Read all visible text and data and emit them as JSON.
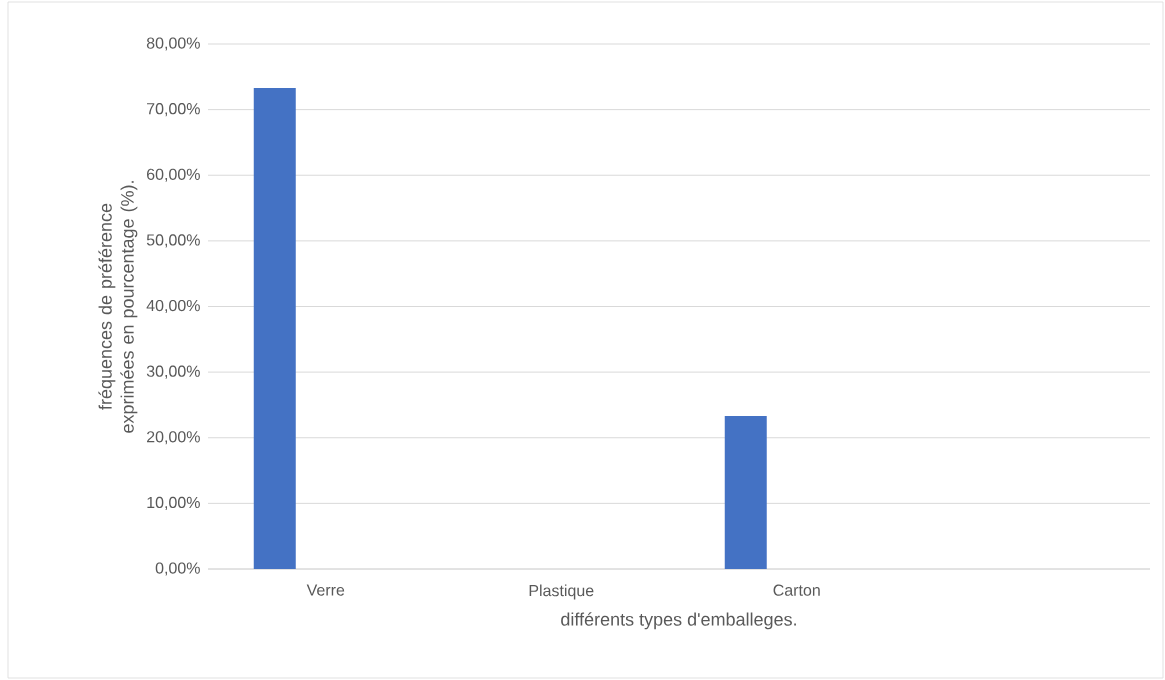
{
  "chart_data": {
    "type": "bar",
    "xlabel": "différents types d'emballeges.",
    "ylabel": "fréquences de préférence exprimées en pourcentage (%).",
    "categories": [
      "Verre",
      "Plastique",
      "Carton",
      null
    ],
    "values": [
      73.3,
      null,
      23.3,
      null
    ],
    "color": "#4472c4",
    "ylim": [
      0,
      80
    ],
    "yticks": [
      {
        "value": 0,
        "label": "0,00%"
      },
      {
        "value": 10,
        "label": "10,00%"
      },
      {
        "value": 20,
        "label": "20,00%"
      },
      {
        "value": 30,
        "label": "30,00%"
      },
      {
        "value": 40,
        "label": "40,00%"
      },
      {
        "value": 50,
        "label": "50,00%"
      },
      {
        "value": 60,
        "label": "60,00%"
      },
      {
        "value": 70,
        "label": "70,00%"
      },
      {
        "value": 80,
        "label": "80,00%"
      }
    ],
    "grid": "y"
  }
}
